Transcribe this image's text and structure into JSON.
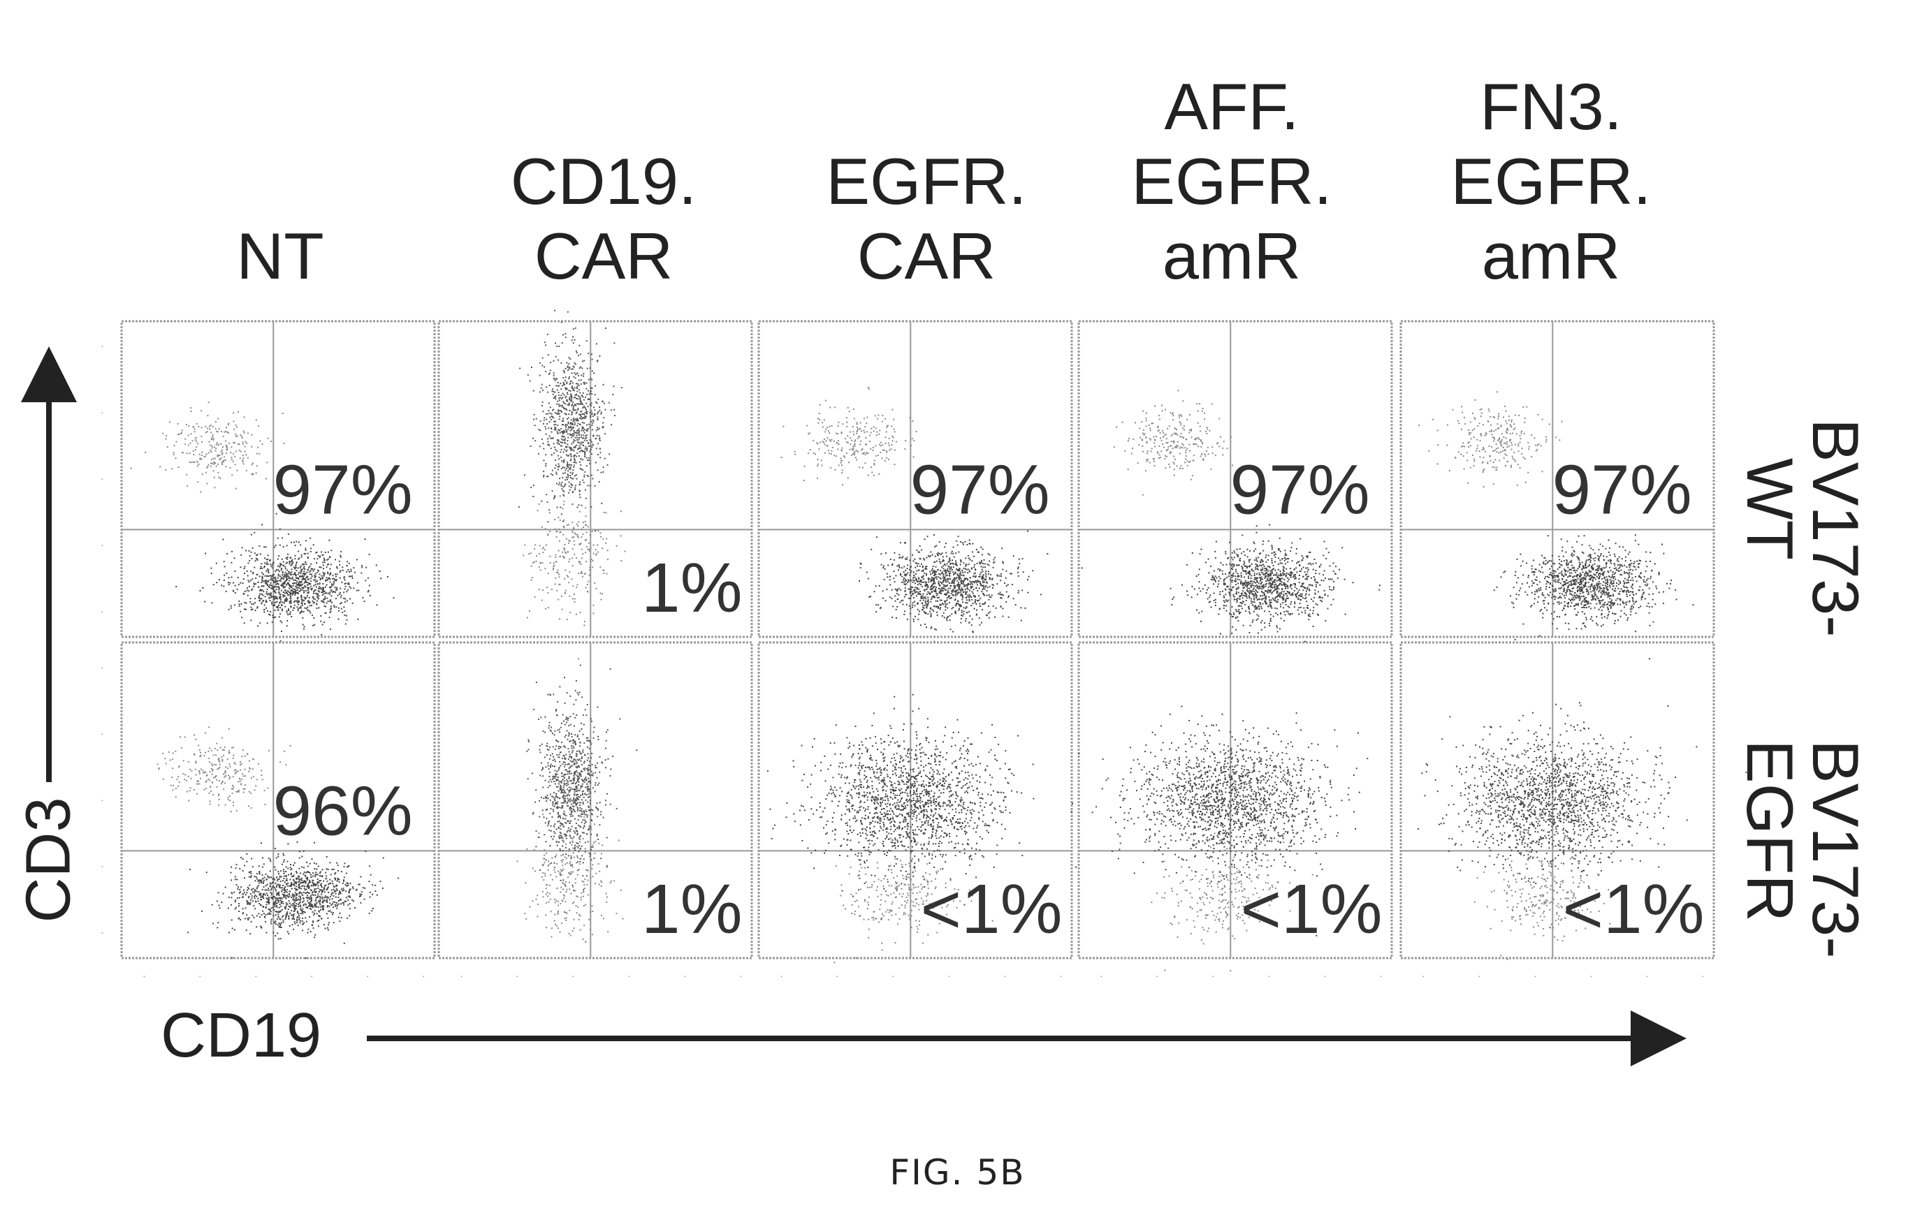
{
  "chart_data": {
    "type": "scatter",
    "title": "",
    "xlabel": "CD19",
    "ylabel": "CD3",
    "x_scale": "log",
    "y_scale": "log",
    "grid": false,
    "columns": [
      {
        "key": "nt",
        "label_lines": [
          "NT"
        ]
      },
      {
        "key": "cd19car",
        "label_lines": [
          "CD19.",
          "CAR"
        ]
      },
      {
        "key": "egfrcar",
        "label_lines": [
          "EGFR.",
          "CAR"
        ]
      },
      {
        "key": "affegfr",
        "label_lines": [
          "AFF.",
          "EGFR.",
          "amR"
        ]
      },
      {
        "key": "fn3egfr",
        "label_lines": [
          "FN3.",
          "EGFR.",
          "amR"
        ]
      }
    ],
    "rows": [
      {
        "key": "wt",
        "label_lines": [
          "BV173-",
          "WT"
        ]
      },
      {
        "key": "egfr",
        "label_lines": [
          "BV173-",
          "EGFR"
        ]
      }
    ],
    "panels": [
      {
        "row": 0,
        "col": 0,
        "percent_label": "97%",
        "label_position": "upper-center"
      },
      {
        "row": 0,
        "col": 1,
        "percent_label": "1%",
        "label_position": "lower-right"
      },
      {
        "row": 0,
        "col": 2,
        "percent_label": "97%",
        "label_position": "upper-center"
      },
      {
        "row": 0,
        "col": 3,
        "percent_label": "97%",
        "label_position": "upper-center"
      },
      {
        "row": 0,
        "col": 4,
        "percent_label": "97%",
        "label_position": "upper-center"
      },
      {
        "row": 1,
        "col": 0,
        "percent_label": "96%",
        "label_position": "upper-center"
      },
      {
        "row": 1,
        "col": 1,
        "percent_label": "1%",
        "label_position": "lower-right"
      },
      {
        "row": 1,
        "col": 2,
        "percent_label": "<1%",
        "label_position": "lower-right"
      },
      {
        "row": 1,
        "col": 3,
        "percent_label": "<1%",
        "label_position": "lower-right"
      },
      {
        "row": 1,
        "col": 4,
        "percent_label": "<1%",
        "label_position": "lower-right"
      }
    ]
  },
  "figure": {
    "caption": "FIG. 5B"
  }
}
